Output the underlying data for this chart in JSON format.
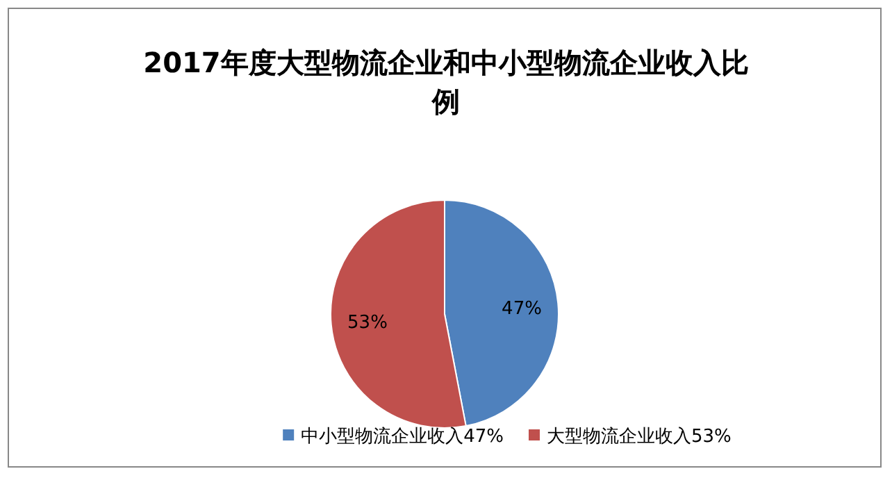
{
  "chart_data": {
    "type": "pie",
    "title": "2017年度大型物流企业和中小型物流企业收入比例",
    "categories": [
      "中小型物流企业收入47%",
      "大型物流企业收入53%"
    ],
    "values": [
      47,
      53
    ],
    "value_labels": [
      "47%",
      "53%"
    ],
    "colors": [
      "#4f81bd",
      "#c0504d"
    ],
    "legend": "bottom"
  }
}
